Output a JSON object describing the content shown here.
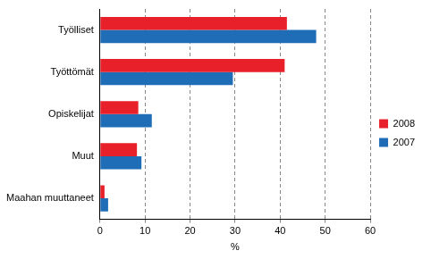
{
  "chart_data": {
    "type": "bar",
    "orientation": "horizontal",
    "categories": [
      "Työlliset",
      "Työttömät",
      "Opiskelijat",
      "Muut",
      "Maahan muuttaneet"
    ],
    "series": [
      {
        "name": "2008",
        "color": "#e8202a",
        "values": [
          41.5,
          41,
          8.5,
          8.2,
          1.0
        ]
      },
      {
        "name": "2007",
        "color": "#1f6db6",
        "values": [
          48,
          29.5,
          11.5,
          9.2,
          1.8
        ]
      }
    ],
    "x_label": "%",
    "xlim": [
      0,
      60
    ],
    "xticks": [
      0,
      10,
      20,
      30,
      40,
      50,
      60
    ],
    "grid": true,
    "legend": "right"
  }
}
